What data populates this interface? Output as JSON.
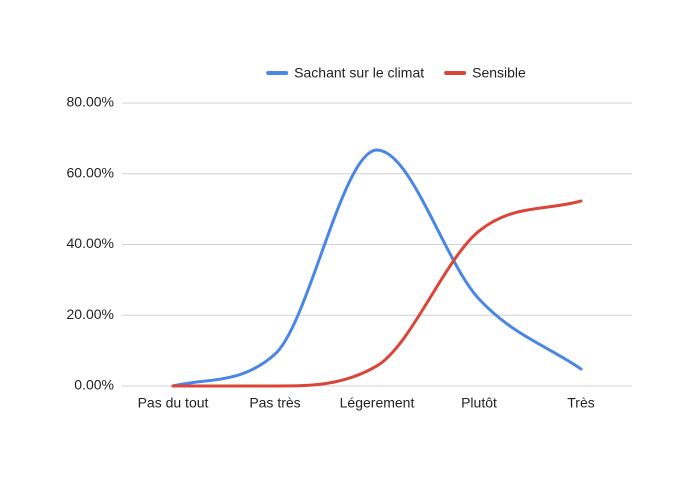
{
  "chart_data": {
    "type": "line",
    "categories": [
      "Pas du tout",
      "Pas très",
      "Légerement",
      "Plutôt",
      "Très"
    ],
    "series": [
      {
        "name": "Sachant sur le climat",
        "color": "#4a86e8",
        "values": [
          0,
          9,
          66.7,
          24.6,
          4.8
        ]
      },
      {
        "name": "Sensible",
        "color": "#db4437",
        "values": [
          0,
          0,
          5.7,
          43.8,
          52.3
        ]
      }
    ],
    "ylim": [
      0,
      80
    ],
    "yticks": [
      {
        "value": 0,
        "label": "0.00%"
      },
      {
        "value": 20,
        "label": "20.00%"
      },
      {
        "value": 40,
        "label": "40.00%"
      },
      {
        "value": 60,
        "label": "60.00%"
      },
      {
        "value": 80,
        "label": "80.00%"
      }
    ],
    "grid": true,
    "legend": "top",
    "smooth": true
  }
}
